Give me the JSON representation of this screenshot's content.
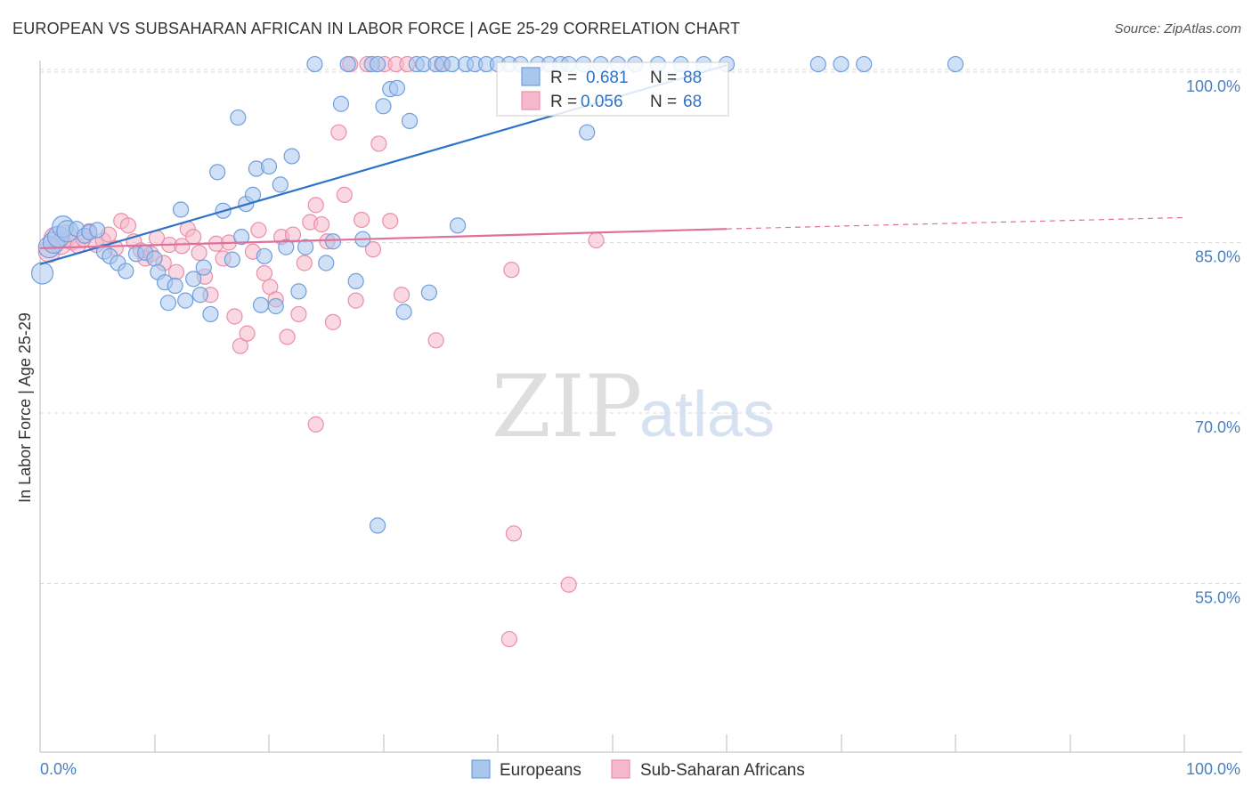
{
  "header": {
    "title": "EUROPEAN VS SUBSAHARAN AFRICAN IN LABOR FORCE | AGE 25-29 CORRELATION CHART",
    "source": "Source: ZipAtlas.com"
  },
  "watermark": {
    "zip": "ZIP",
    "atlas": "atlas"
  },
  "colors": {
    "blue_fill": "#a9c6ef",
    "blue_stroke": "#6f9fdd",
    "blue_line": "#2f72c9",
    "pink_fill": "#f6b8cb",
    "pink_stroke": "#e98fab",
    "pink_line": "#e0709a",
    "tick_text": "#4a7fc1",
    "grid": "#d9d9d9"
  },
  "stats": {
    "r_label": "R =",
    "n_label": "N =",
    "europeans": {
      "r": "0.681",
      "n": "88"
    },
    "africans": {
      "r": "0.056",
      "n": "68"
    }
  },
  "chart_data": {
    "type": "scatter",
    "title": "EUROPEAN VS SUBSAHARAN AFRICAN IN LABOR FORCE | AGE 25-29 CORRELATION CHART",
    "xlabel": "",
    "ylabel": "In Labor Force | Age 25-29",
    "xlim": [
      0,
      100
    ],
    "ylim": [
      42.5,
      102.5
    ],
    "x_tick_labels": [
      "0.0%",
      "100.0%"
    ],
    "y_ticks": [
      {
        "value": 100,
        "label": "100.0%"
      },
      {
        "value": 85,
        "label": "85.0%"
      },
      {
        "value": 70,
        "label": "70.0%"
      },
      {
        "value": 55,
        "label": "55.0%"
      }
    ],
    "grid": "horizontal dashed",
    "legend_position": "bottom-center",
    "series": [
      {
        "name": "Europeans",
        "color": "#a9c6ef",
        "r": 0.681,
        "n": 88,
        "trend": {
          "x0": 0,
          "y0": 83.1,
          "x1": 60,
          "y1": 100.6,
          "dashed_to": null
        },
        "points": [
          [
            0.2,
            82.3
          ],
          [
            0.8,
            84.6
          ],
          [
            1.2,
            85.0
          ],
          [
            1.6,
            85.5
          ],
          [
            2.0,
            86.4
          ],
          [
            2.4,
            86.0
          ],
          [
            3.2,
            86.2
          ],
          [
            3.9,
            85.6
          ],
          [
            4.3,
            85.9
          ],
          [
            5.0,
            86.1
          ],
          [
            5.6,
            84.2
          ],
          [
            6.1,
            83.8
          ],
          [
            6.8,
            83.2
          ],
          [
            7.5,
            82.5
          ],
          [
            8.4,
            84.0
          ],
          [
            9.2,
            84.1
          ],
          [
            10.0,
            83.6
          ],
          [
            10.3,
            82.4
          ],
          [
            10.9,
            81.5
          ],
          [
            11.2,
            79.7
          ],
          [
            11.8,
            81.2
          ],
          [
            12.3,
            87.9
          ],
          [
            12.7,
            79.9
          ],
          [
            13.4,
            81.8
          ],
          [
            14.0,
            80.4
          ],
          [
            14.3,
            82.8
          ],
          [
            14.9,
            78.7
          ],
          [
            15.5,
            91.2
          ],
          [
            16.0,
            87.8
          ],
          [
            16.8,
            83.5
          ],
          [
            17.3,
            96.0
          ],
          [
            17.6,
            85.5
          ],
          [
            18.0,
            88.4
          ],
          [
            18.6,
            89.2
          ],
          [
            18.9,
            91.5
          ],
          [
            19.3,
            79.5
          ],
          [
            19.6,
            83.8
          ],
          [
            20.0,
            91.7
          ],
          [
            20.6,
            79.4
          ],
          [
            21.0,
            90.1
          ],
          [
            21.5,
            84.6
          ],
          [
            22.0,
            92.6
          ],
          [
            22.6,
            80.7
          ],
          [
            23.2,
            84.6
          ],
          [
            24.0,
            100.7
          ],
          [
            25.0,
            83.2
          ],
          [
            25.6,
            85.1
          ],
          [
            26.3,
            97.2
          ],
          [
            26.9,
            100.7
          ],
          [
            27.6,
            81.6
          ],
          [
            28.2,
            85.3
          ],
          [
            29.0,
            100.7
          ],
          [
            29.5,
            100.7
          ],
          [
            30.0,
            97.0
          ],
          [
            30.6,
            98.5
          ],
          [
            31.2,
            98.6
          ],
          [
            31.8,
            78.9
          ],
          [
            32.3,
            95.7
          ],
          [
            32.9,
            100.7
          ],
          [
            33.5,
            100.7
          ],
          [
            34.0,
            80.6
          ],
          [
            34.6,
            100.7
          ],
          [
            35.2,
            100.7
          ],
          [
            36.0,
            100.7
          ],
          [
            36.5,
            86.5
          ],
          [
            37.2,
            100.7
          ],
          [
            38.0,
            100.7
          ],
          [
            39.0,
            100.7
          ],
          [
            40.0,
            100.7
          ],
          [
            41.0,
            100.7
          ],
          [
            42.0,
            100.7
          ],
          [
            43.5,
            100.7
          ],
          [
            44.5,
            100.7
          ],
          [
            45.5,
            100.7
          ],
          [
            46.2,
            100.7
          ],
          [
            47.5,
            100.7
          ],
          [
            47.8,
            94.7
          ],
          [
            49.0,
            100.7
          ],
          [
            50.5,
            100.7
          ],
          [
            52.0,
            100.7
          ],
          [
            54.0,
            100.7
          ],
          [
            56.0,
            100.7
          ],
          [
            58.0,
            100.7
          ],
          [
            60.0,
            100.7
          ],
          [
            68.0,
            100.7
          ],
          [
            70.0,
            100.7
          ],
          [
            72.0,
            100.7
          ],
          [
            80.0,
            100.7
          ]
        ]
      },
      {
        "name": "Sub-Saharan Africans",
        "color": "#f6b8cb",
        "r": 0.056,
        "n": 68,
        "trend": {
          "x0": 0,
          "y0": 84.5,
          "x1": 60,
          "y1": 86.2,
          "dashed_to": {
            "x": 100,
            "y": 87.2
          }
        },
        "points": [
          [
            0.8,
            84.2
          ],
          [
            1.3,
            85.4
          ],
          [
            1.8,
            84.9
          ],
          [
            2.3,
            85.6
          ],
          [
            2.8,
            85.0
          ],
          [
            3.3,
            84.7
          ],
          [
            3.8,
            85.3
          ],
          [
            4.3,
            86.0
          ],
          [
            4.9,
            84.8
          ],
          [
            5.5,
            85.2
          ],
          [
            6.0,
            85.7
          ],
          [
            6.6,
            84.5
          ],
          [
            7.1,
            86.9
          ],
          [
            7.7,
            86.5
          ],
          [
            8.2,
            85.1
          ],
          [
            8.8,
            84.3
          ],
          [
            9.2,
            83.6
          ],
          [
            9.7,
            84.0
          ],
          [
            10.2,
            85.4
          ],
          [
            10.8,
            83.2
          ],
          [
            11.3,
            84.8
          ],
          [
            11.9,
            82.4
          ],
          [
            12.4,
            84.7
          ],
          [
            12.9,
            86.2
          ],
          [
            13.4,
            85.5
          ],
          [
            13.9,
            84.1
          ],
          [
            14.4,
            82.0
          ],
          [
            14.9,
            80.4
          ],
          [
            15.4,
            84.9
          ],
          [
            16.0,
            83.6
          ],
          [
            16.5,
            85.0
          ],
          [
            17.0,
            78.5
          ],
          [
            17.5,
            75.9
          ],
          [
            18.1,
            77.0
          ],
          [
            18.6,
            84.2
          ],
          [
            19.1,
            86.1
          ],
          [
            19.6,
            82.3
          ],
          [
            20.1,
            81.1
          ],
          [
            20.6,
            80.0
          ],
          [
            21.1,
            85.5
          ],
          [
            21.6,
            76.7
          ],
          [
            22.1,
            85.7
          ],
          [
            22.6,
            78.7
          ],
          [
            23.1,
            83.2
          ],
          [
            23.6,
            86.8
          ],
          [
            24.1,
            88.3
          ],
          [
            24.6,
            86.6
          ],
          [
            25.1,
            85.1
          ],
          [
            25.6,
            78.0
          ],
          [
            26.1,
            94.7
          ],
          [
            26.6,
            89.2
          ],
          [
            27.1,
            100.7
          ],
          [
            27.6,
            79.9
          ],
          [
            28.1,
            87.0
          ],
          [
            28.6,
            100.7
          ],
          [
            29.1,
            84.4
          ],
          [
            29.6,
            93.7
          ],
          [
            30.1,
            100.7
          ],
          [
            30.6,
            86.9
          ],
          [
            31.1,
            100.7
          ],
          [
            31.6,
            80.4
          ],
          [
            32.1,
            100.7
          ],
          [
            34.6,
            76.4
          ],
          [
            35.1,
            100.7
          ],
          [
            41.2,
            82.6
          ],
          [
            41.4,
            59.4
          ],
          [
            46.2,
            54.9
          ],
          [
            48.6,
            85.2
          ]
        ]
      }
    ],
    "extra_outliers": {
      "Europeans": [
        [
          29.5,
          60.1
        ]
      ],
      "Sub-Saharan Africans": [
        [
          24.1,
          69.0
        ],
        [
          41.0,
          50.1
        ]
      ]
    }
  },
  "legend": {
    "europeans": "Europeans",
    "africans": "Sub-Saharan Africans"
  }
}
